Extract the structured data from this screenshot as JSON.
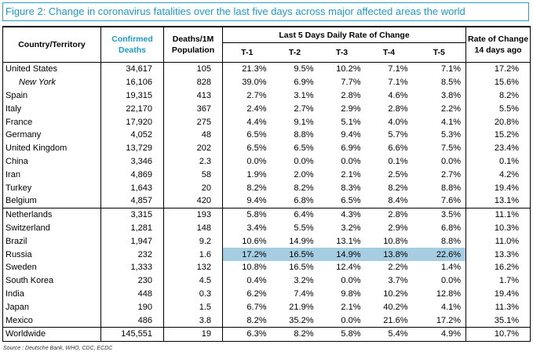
{
  "title": "Figure 2: Change in coronavirus fatalities over the last five days across major affected areas the world",
  "headers": {
    "country": "Country/Territory",
    "confirmed": [
      "Confirmed",
      "Deaths"
    ],
    "deaths_per_1m": [
      "Deaths/1M",
      "Population"
    ],
    "group": "Last 5 Days Daily Rate of Change",
    "t_cols": [
      "T-1",
      "T-2",
      "T-3",
      "T-4",
      "T-5"
    ],
    "rate14": [
      "Rate of Change",
      "14 days ago"
    ]
  },
  "rows": [
    {
      "country": "United States",
      "confirmed": "34,617",
      "per1m": "105",
      "t": [
        "21.3%",
        "9.5%",
        "10.2%",
        "7.1%",
        "7.1%"
      ],
      "rate14": "17.2%"
    },
    {
      "country": "New York",
      "italic": true,
      "confirmed": "16,106",
      "per1m": "828",
      "t": [
        "39.0%",
        "6.9%",
        "7.7%",
        "7.1%",
        "8.5%"
      ],
      "rate14": "15.6%"
    },
    {
      "country": "Spain",
      "confirmed": "19,315",
      "per1m": "413",
      "t": [
        "2.7%",
        "3.1%",
        "2.8%",
        "4.6%",
        "3.8%"
      ],
      "rate14": "8.2%"
    },
    {
      "country": "Italy",
      "confirmed": "22,170",
      "per1m": "367",
      "t": [
        "2.4%",
        "2.7%",
        "2.9%",
        "2.8%",
        "2.2%"
      ],
      "rate14": "5.5%"
    },
    {
      "country": "France",
      "confirmed": "17,920",
      "per1m": "275",
      "t": [
        "4.4%",
        "9.1%",
        "5.1%",
        "4.0%",
        "4.1%"
      ],
      "rate14": "20.8%"
    },
    {
      "country": "Germany",
      "confirmed": "4,052",
      "per1m": "48",
      "t": [
        "6.5%",
        "8.8%",
        "9.4%",
        "5.7%",
        "5.3%"
      ],
      "rate14": "15.2%"
    },
    {
      "country": "United Kingdom",
      "confirmed": "13,729",
      "per1m": "202",
      "t": [
        "6.5%",
        "6.5%",
        "6.9%",
        "6.6%",
        "7.5%"
      ],
      "rate14": "23.4%"
    },
    {
      "country": "China",
      "confirmed": "3,346",
      "per1m": "2.3",
      "t": [
        "0.0%",
        "0.0%",
        "0.0%",
        "0.1%",
        "0.0%"
      ],
      "rate14": "0.1%"
    },
    {
      "country": "Iran",
      "confirmed": "4,869",
      "per1m": "58",
      "t": [
        "1.9%",
        "2.0%",
        "2.1%",
        "2.5%",
        "2.7%"
      ],
      "rate14": "4.2%"
    },
    {
      "country": "Turkey",
      "confirmed": "1,643",
      "per1m": "20",
      "t": [
        "8.2%",
        "8.2%",
        "8.3%",
        "8.2%",
        "8.8%"
      ],
      "rate14": "19.4%"
    },
    {
      "country": "Belgium",
      "confirmed": "4,857",
      "per1m": "420",
      "t": [
        "9.4%",
        "6.8%",
        "6.5%",
        "8.4%",
        "7.6%"
      ],
      "rate14": "13.1%"
    },
    {
      "country": "Netherlands",
      "separator": true,
      "confirmed": "3,315",
      "per1m": "193",
      "t": [
        "5.8%",
        "6.4%",
        "4.3%",
        "2.8%",
        "3.5%"
      ],
      "rate14": "11.1%"
    },
    {
      "country": "Switzerland",
      "confirmed": "1,281",
      "per1m": "148",
      "t": [
        "3.4%",
        "5.5%",
        "3.2%",
        "2.9%",
        "6.8%"
      ],
      "rate14": "10.3%"
    },
    {
      "country": "Brazil",
      "confirmed": "1,947",
      "per1m": "9.2",
      "t": [
        "10.6%",
        "14.9%",
        "13.1%",
        "10.8%",
        "8.8%"
      ],
      "rate14": "11.0%"
    },
    {
      "country": "Russia",
      "highlight": true,
      "confirmed": "232",
      "per1m": "1.6",
      "t": [
        "17.2%",
        "16.5%",
        "14.9%",
        "13.8%",
        "22.6%"
      ],
      "rate14": "13.3%"
    },
    {
      "country": "Sweden",
      "confirmed": "1,333",
      "per1m": "132",
      "t": [
        "10.8%",
        "16.5%",
        "12.4%",
        "2.2%",
        "1.4%"
      ],
      "rate14": "16.2%"
    },
    {
      "country": "South Korea",
      "confirmed": "230",
      "per1m": "4.5",
      "t": [
        "0.4%",
        "3.2%",
        "0.0%",
        "3.7%",
        "0.0%"
      ],
      "rate14": "1.7%"
    },
    {
      "country": "India",
      "confirmed": "448",
      "per1m": "0.3",
      "t": [
        "6.2%",
        "7.4%",
        "9.8%",
        "10.2%",
        "12.8%"
      ],
      "rate14": "19.4%"
    },
    {
      "country": "Japan",
      "confirmed": "190",
      "per1m": "1.5",
      "t": [
        "6.7%",
        "21.9%",
        "2.1%",
        "40.2%",
        "4.1%"
      ],
      "rate14": "11.3%"
    },
    {
      "country": "Mexico",
      "confirmed": "486",
      "per1m": "3.8",
      "t": [
        "8.2%",
        "35.2%",
        "0.0%",
        "21.6%",
        "17.2%"
      ],
      "rate14": "35.1%"
    },
    {
      "country": "Worldwide",
      "world": true,
      "confirmed": "145,551",
      "per1m": "19",
      "t": [
        "6.3%",
        "8.2%",
        "5.8%",
        "5.4%",
        "4.9%"
      ],
      "rate14": "10.7%"
    }
  ],
  "source": "Source : Deutsche Bank, WHO, CDC, ECDC",
  "colors": {
    "accent": "#1d9ac6",
    "highlight": "#a7cde3"
  }
}
